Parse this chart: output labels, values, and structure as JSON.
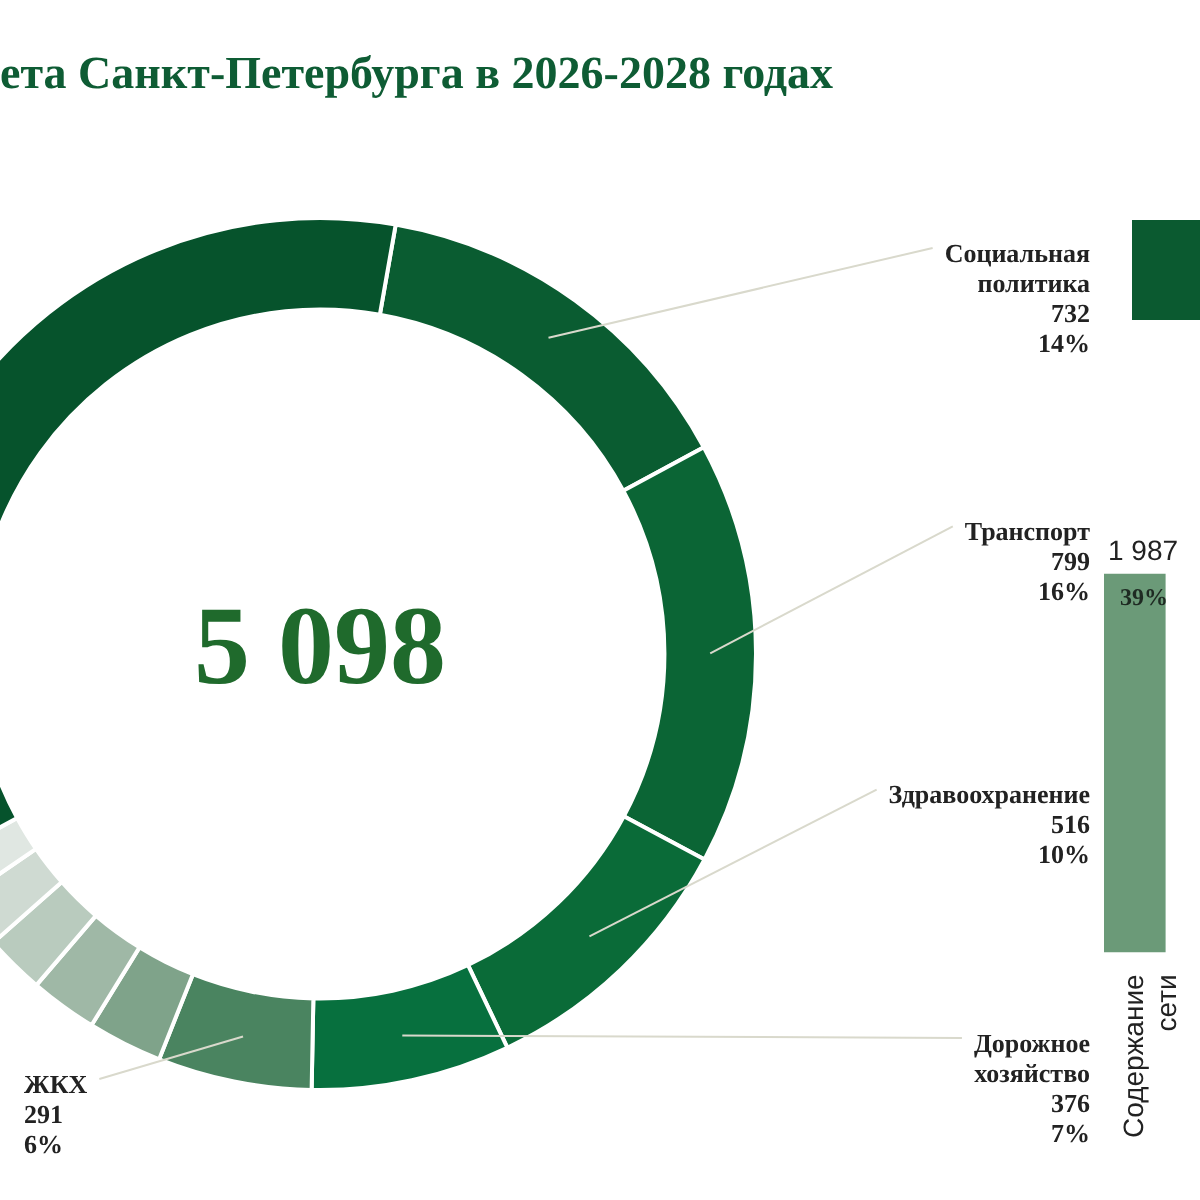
{
  "chart_data": [
    {
      "type": "donut",
      "title": "ета Санкт-Петербурга в 2026-2028 годах",
      "categories": [
        "Социальная политика",
        "Транспорт",
        "Здравоохранение",
        "Дорожное хозяйство",
        "ЖКХ",
        null,
        null,
        null,
        null,
        null,
        null
      ],
      "values": [
        732,
        799,
        516,
        376,
        291,
        141,
        127,
        113,
        99,
        85,
        1819
      ],
      "colors": [
        "#0a5c31",
        "#0b6535",
        "#0a6b38",
        "#07703e",
        "#4a8460",
        "#7fa38a",
        "#9fb8a6",
        "#b9cbbe",
        "#cfdad2",
        "#e0e7e2",
        "#06532c"
      ],
      "value_labels": [
        "732\n14%",
        "799\n16%",
        "516\n10%",
        "376\n7%",
        "291\n6%",
        null,
        null,
        null,
        null,
        null,
        null
      ],
      "annotations": [
        "5 098"
      ]
    },
    {
      "type": "bar",
      "categories": [
        "Содержание сети"
      ],
      "values": [
        1987
      ],
      "color": "#6b9a78",
      "value_labels": [
        "1 987"
      ],
      "annotations": [
        "39%"
      ]
    }
  ]
}
